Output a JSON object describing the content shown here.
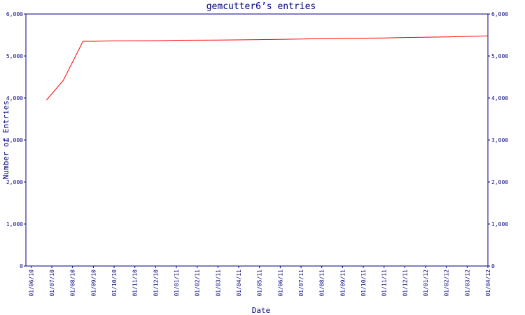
{
  "chart_data": {
    "type": "line",
    "title": "gemcutter6’s entries",
    "x_label": "Date",
    "y_label": "Number of Entries",
    "x": [
      0.74,
      1.55,
      2.5,
      3.0,
      4,
      6,
      7,
      9,
      11,
      13,
      15,
      17,
      18,
      20,
      21,
      22
    ],
    "series": [
      {
        "name": "entries",
        "color": "#ff0000",
        "values": [
          3950,
          4420,
          5350,
          5350,
          5360,
          5365,
          5375,
          5380,
          5390,
          5405,
          5420,
          5430,
          5440,
          5455,
          5465,
          5480
        ]
      }
    ],
    "xlim": [
      -0.25,
      22
    ],
    "xticks": [
      {
        "value": 0,
        "label": "01/06/10"
      },
      {
        "value": 1,
        "label": "01/07/10"
      },
      {
        "value": 2,
        "label": "01/08/10"
      },
      {
        "value": 3,
        "label": "01/09/10"
      },
      {
        "value": 4,
        "label": "01/10/10"
      },
      {
        "value": 5,
        "label": "01/11/10"
      },
      {
        "value": 6,
        "label": "01/12/10"
      },
      {
        "value": 7,
        "label": "01/01/11"
      },
      {
        "value": 8,
        "label": "01/02/11"
      },
      {
        "value": 9,
        "label": "01/03/11"
      },
      {
        "value": 10,
        "label": "01/04/11"
      },
      {
        "value": 11,
        "label": "01/05/11"
      },
      {
        "value": 12,
        "label": "01/06/11"
      },
      {
        "value": 13,
        "label": "01/07/11"
      },
      {
        "value": 14,
        "label": "01/08/11"
      },
      {
        "value": 15,
        "label": "01/09/11"
      },
      {
        "value": 16,
        "label": "01/10/11"
      },
      {
        "value": 17,
        "label": "01/11/11"
      },
      {
        "value": 18,
        "label": "01/12/11"
      },
      {
        "value": 19,
        "label": "01/01/12"
      },
      {
        "value": 20,
        "label": "01/02/12"
      },
      {
        "value": 21,
        "label": "01/03/12"
      },
      {
        "value": 22,
        "label": "01/04/12"
      }
    ],
    "ylim": [
      0,
      6000
    ],
    "yticks": [
      0,
      {
        "value": 1000,
        "label": "1,000"
      },
      {
        "value": 2000,
        "label": "2,000"
      },
      {
        "value": 3000,
        "label": "3,000"
      },
      {
        "value": 4000,
        "label": "4,000"
      },
      {
        "value": 5000,
        "label": "5,000"
      },
      {
        "value": 6000,
        "label": "6,000"
      }
    ],
    "y2lim": [
      0,
      6000
    ],
    "y2ticks": [
      0,
      {
        "value": 1000,
        "label": "1,000"
      },
      {
        "value": 2000,
        "label": "2,000"
      },
      {
        "value": 3000,
        "label": "3,000"
      },
      {
        "value": 4000,
        "label": "4,000"
      },
      {
        "value": 5000,
        "label": "5,000"
      },
      {
        "value": 6000,
        "label": "6,000"
      }
    ]
  }
}
